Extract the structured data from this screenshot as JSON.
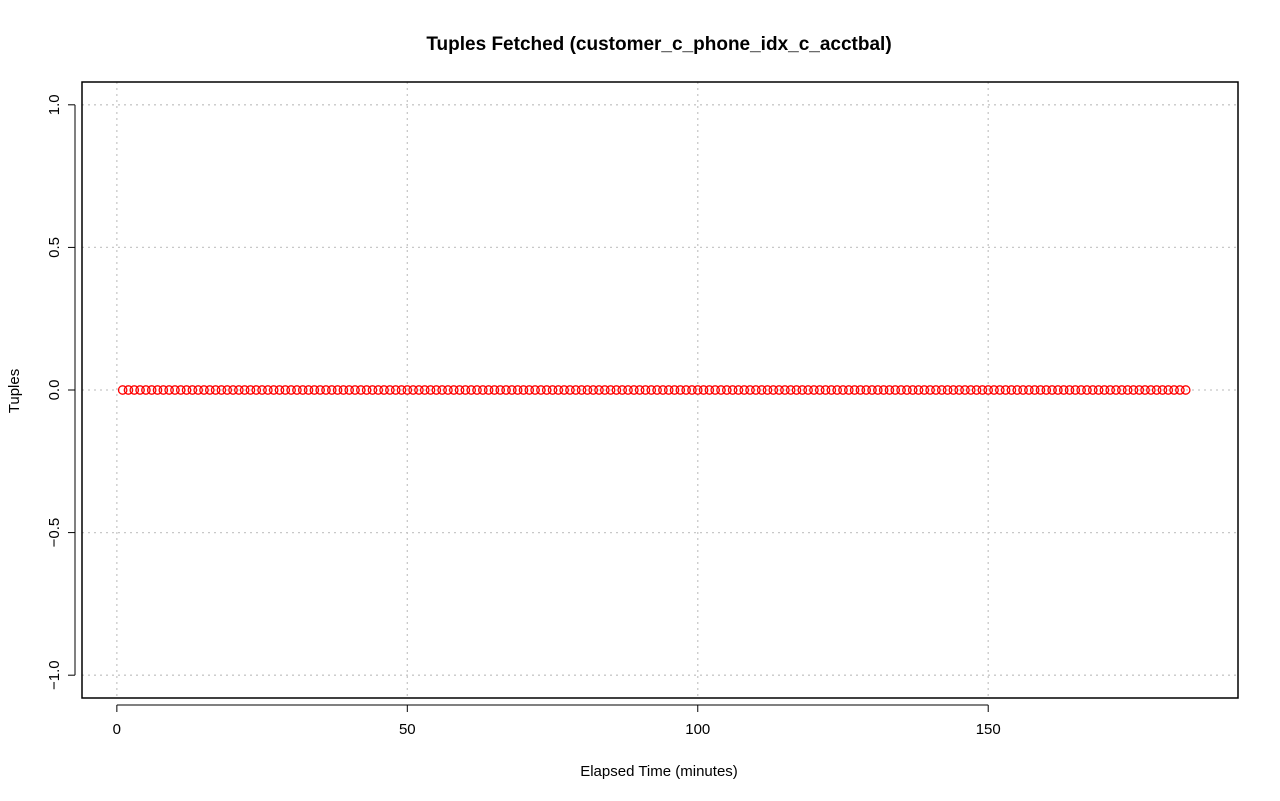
{
  "chart_data": {
    "type": "scatter",
    "title": "Tuples Fetched (customer_c_phone_idx_c_acctbal)",
    "xlabel": "Elapsed Time (minutes)",
    "ylabel": "Tuples",
    "xlim": [
      -6,
      193
    ],
    "ylim": [
      -1.08,
      1.08
    ],
    "x_ticks": [
      0,
      50,
      100,
      150
    ],
    "x_tick_labels": [
      "0",
      "50",
      "100",
      "150"
    ],
    "y_ticks": [
      -1.0,
      -0.5,
      0.0,
      0.5,
      1.0
    ],
    "y_tick_labels": [
      "−1.0",
      "−0.5",
      "0.0",
      "0.5",
      "1.0"
    ],
    "grid": true,
    "point_color": "#ff0000",
    "series": [
      {
        "x_start": 1,
        "x_end": 184,
        "x_step": 1,
        "y": 0
      }
    ]
  }
}
